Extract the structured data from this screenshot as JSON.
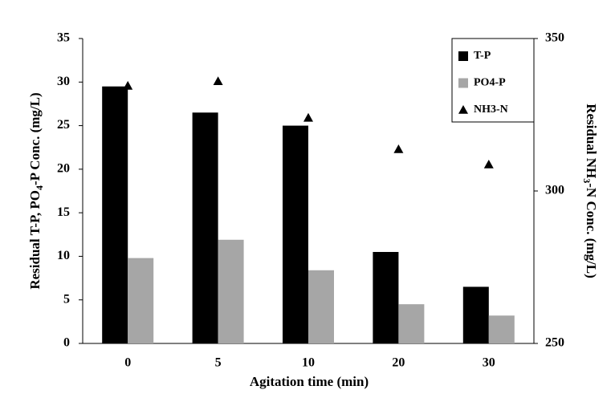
{
  "chart_data": {
    "type": "bar",
    "x_label": "Agitation time (min)",
    "y_label": [
      "Residual T-P, PO",
      "4",
      "-P Conc. (mg/L)"
    ],
    "y2_label": [
      "Residual NH",
      "3",
      "-N Conc. (mg/L)"
    ],
    "categories": [
      "0",
      "5",
      "10",
      "20",
      "30"
    ],
    "series": [
      {
        "name": "T-P",
        "color": "#000000",
        "values": [
          29.5,
          26.5,
          25,
          10.5,
          6.5
        ]
      },
      {
        "name": "PO4-P",
        "color": "#a6a6a6",
        "values": [
          9.8,
          11.9,
          8.4,
          4.5,
          3.2
        ]
      },
      {
        "name": "NH3-N",
        "color": "#000000",
        "type": "scatter",
        "marker": "triangle",
        "axis": "y2",
        "values": [
          334.5,
          336,
          324,
          313.7,
          308.7
        ]
      }
    ],
    "ylim": [
      0,
      35
    ],
    "yticks": [
      0,
      5,
      10,
      15,
      20,
      25,
      30,
      35
    ],
    "y2lim": [
      250,
      350
    ],
    "y2ticks": [
      250,
      300,
      350
    ],
    "grid": false,
    "legend": "upper right"
  }
}
